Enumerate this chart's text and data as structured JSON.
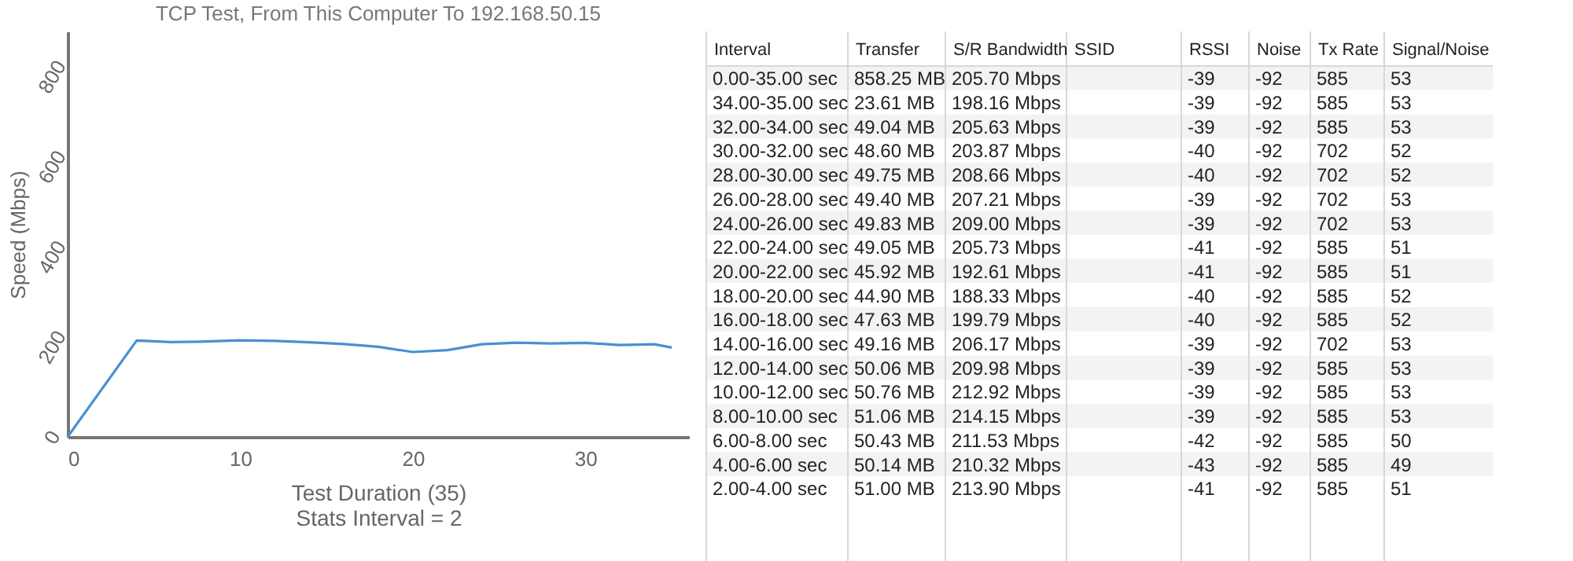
{
  "chart_data": [
    {
      "type": "line",
      "title": "TCP Test,  From This Computer To 192.168.50.15",
      "xlabel": "Test Duration (35)",
      "ylabel": "Speed (Mbps)",
      "annotations": [
        "Stats Interval = 2"
      ],
      "series": [
        {
          "color": "#4a8fd4",
          "x": [
            0,
            4,
            6,
            8,
            10,
            12,
            14,
            16,
            18,
            20,
            22,
            24,
            26,
            28,
            30,
            32,
            34,
            35
          ],
          "values": [
            0,
            213.9,
            210.32,
            211.53,
            214.15,
            212.92,
            209.98,
            206.17,
            199.79,
            188.33,
            192.61,
            205.73,
            209.0,
            207.21,
            208.66,
            203.87,
            205.63,
            198.16
          ]
        }
      ],
      "xlim": [
        0,
        36
      ],
      "xticks": [
        0,
        10,
        20,
        30
      ],
      "ylim": [
        0,
        900
      ],
      "yticks": [
        0,
        200,
        400,
        600,
        800
      ],
      "grid": false,
      "marker": "none",
      "line_style": "solid"
    },
    {
      "type": "other",
      "categories": [
        "Interval",
        "Transfer",
        "S/R Bandwidth",
        "SSID",
        "RSSI",
        "Noise",
        "Tx Rate",
        "Signal/Noise"
      ],
      "cell_labels": [
        [
          "0.00-35.00 sec",
          "858.25 MB",
          "205.70 Mbps",
          null,
          "-39",
          "-92",
          "585",
          "53"
        ],
        [
          "34.00-35.00 sec",
          "23.61 MB",
          "198.16 Mbps",
          null,
          "-39",
          "-92",
          "585",
          "53"
        ],
        [
          "32.00-34.00 sec",
          "49.04 MB",
          "205.63 Mbps",
          null,
          "-39",
          "-92",
          "585",
          "53"
        ],
        [
          "30.00-32.00 sec",
          "48.60 MB",
          "203.87 Mbps",
          null,
          "-40",
          "-92",
          "702",
          "52"
        ],
        [
          "28.00-30.00 sec",
          "49.75 MB",
          "208.66 Mbps",
          null,
          "-40",
          "-92",
          "702",
          "52"
        ],
        [
          "26.00-28.00 sec",
          "49.40 MB",
          "207.21 Mbps",
          null,
          "-39",
          "-92",
          "702",
          "53"
        ],
        [
          "24.00-26.00 sec",
          "49.83 MB",
          "209.00 Mbps",
          null,
          "-39",
          "-92",
          "702",
          "53"
        ],
        [
          "22.00-24.00 sec",
          "49.05 MB",
          "205.73 Mbps",
          null,
          "-41",
          "-92",
          "585",
          "51"
        ],
        [
          "20.00-22.00 sec",
          "45.92 MB",
          "192.61 Mbps",
          null,
          "-41",
          "-92",
          "585",
          "51"
        ],
        [
          "18.00-20.00 sec",
          "44.90 MB",
          "188.33 Mbps",
          null,
          "-40",
          "-92",
          "585",
          "52"
        ],
        [
          "16.00-18.00 sec",
          "47.63 MB",
          "199.79 Mbps",
          null,
          "-40",
          "-92",
          "585",
          "52"
        ],
        [
          "14.00-16.00 sec",
          "49.16 MB",
          "206.17 Mbps",
          null,
          "-39",
          "-92",
          "702",
          "53"
        ],
        [
          "12.00-14.00 sec",
          "50.06 MB",
          "209.98 Mbps",
          null,
          "-39",
          "-92",
          "585",
          "53"
        ],
        [
          "10.00-12.00 sec",
          "50.76 MB",
          "212.92 Mbps",
          null,
          "-39",
          "-92",
          "585",
          "53"
        ],
        [
          "8.00-10.00 sec",
          "51.06 MB",
          "214.15 Mbps",
          null,
          "-39",
          "-92",
          "585",
          "53"
        ],
        [
          "6.00-8.00 sec",
          "50.43 MB",
          "211.53 Mbps",
          null,
          "-42",
          "-92",
          "585",
          "50"
        ],
        [
          "4.00-6.00 sec",
          "50.14 MB",
          "210.32 Mbps",
          null,
          "-43",
          "-92",
          "585",
          "49"
        ],
        [
          "2.00-4.00 sec",
          "51.00 MB",
          "213.90 Mbps",
          null,
          "-41",
          "-92",
          "585",
          "51"
        ]
      ]
    }
  ]
}
